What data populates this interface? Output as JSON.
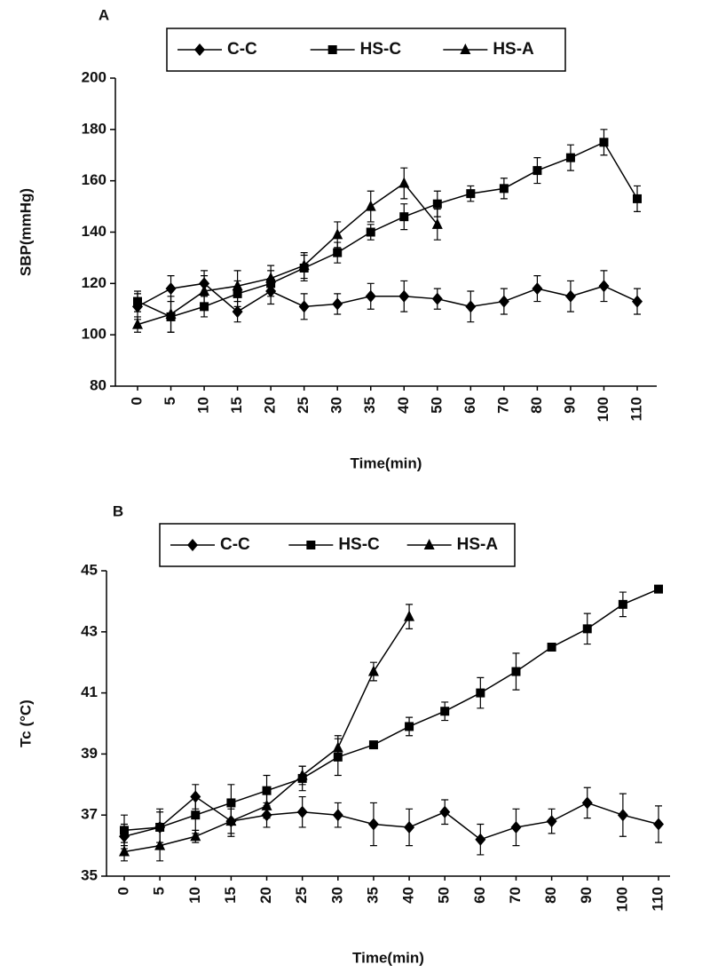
{
  "chart_data": [
    {
      "type": "line",
      "title": "A",
      "xlabel": "Time(min)",
      "ylabel": "SBP(mmHg)",
      "categories": [
        "0",
        "5",
        "10",
        "15",
        "20",
        "25",
        "30",
        "35",
        "40",
        "50",
        "60",
        "70",
        "80",
        "90",
        "100",
        "110"
      ],
      "ylim": [
        80,
        200
      ],
      "yticks": [
        80,
        100,
        120,
        140,
        160,
        180,
        200
      ],
      "series": [
        {
          "name": "C-C",
          "color": "#000000",
          "marker": "diamond",
          "values": [
            111,
            118,
            120,
            109,
            117,
            111,
            112,
            115,
            115,
            114,
            111,
            113,
            118,
            115,
            119,
            113
          ],
          "errors": [
            5,
            5,
            5,
            4,
            5,
            5,
            4,
            5,
            6,
            4,
            6,
            5,
            5,
            6,
            6,
            5
          ]
        },
        {
          "name": "HS-C",
          "color": "#000000",
          "marker": "square",
          "values": [
            113,
            107,
            111,
            116,
            120,
            126,
            132,
            140,
            146,
            151,
            155,
            157,
            164,
            169,
            175,
            153
          ],
          "errors": [
            4,
            6,
            4,
            5,
            5,
            5,
            4,
            3,
            5,
            5,
            3,
            4,
            5,
            5,
            5,
            5
          ]
        },
        {
          "name": "HS-A",
          "color": "#000000",
          "marker": "triangle",
          "values": [
            104,
            108,
            117,
            119,
            122,
            127,
            139,
            150,
            159,
            143,
            null,
            null,
            null,
            null,
            null,
            null
          ],
          "errors": [
            3,
            7,
            6,
            6,
            5,
            5,
            5,
            6,
            6,
            6,
            null,
            null,
            null,
            null,
            null,
            null
          ]
        }
      ]
    },
    {
      "type": "line",
      "title": "B",
      "xlabel": "Time(min)",
      "ylabel": "Tc (°C)",
      "categories": [
        "0",
        "5",
        "10",
        "15",
        "20",
        "25",
        "30",
        "35",
        "40",
        "50",
        "60",
        "70",
        "80",
        "90",
        "100",
        "110"
      ],
      "ylim": [
        35,
        45
      ],
      "yticks": [
        35,
        37,
        39,
        41,
        43,
        45
      ],
      "series": [
        {
          "name": "C-C",
          "color": "#000000",
          "marker": "diamond",
          "values": [
            36.3,
            36.6,
            37.6,
            36.8,
            37.0,
            37.1,
            37.0,
            36.7,
            36.6,
            37.1,
            36.2,
            36.6,
            36.8,
            37.4,
            37.0,
            36.7
          ],
          "errors": [
            0.4,
            0.5,
            0.4,
            0.5,
            0.4,
            0.5,
            0.4,
            0.7,
            0.6,
            0.4,
            0.5,
            0.6,
            0.4,
            0.5,
            0.7,
            0.6
          ]
        },
        {
          "name": "HS-C",
          "color": "#000000",
          "marker": "square",
          "values": [
            36.5,
            36.6,
            37.0,
            37.4,
            37.8,
            38.2,
            38.9,
            39.3,
            39.9,
            40.4,
            41.0,
            41.7,
            42.5,
            43.1,
            43.9,
            44.4
          ],
          "errors": [
            0.5,
            0.6,
            0.6,
            0.6,
            0.5,
            0.4,
            0.6,
            0.1,
            0.3,
            0.3,
            0.5,
            0.6,
            0.1,
            0.5,
            0.4,
            0.1
          ]
        },
        {
          "name": "HS-A",
          "color": "#000000",
          "marker": "triangle",
          "values": [
            35.8,
            36.0,
            36.3,
            36.8,
            37.3,
            38.3,
            39.2,
            41.7,
            43.5,
            null,
            null,
            null,
            null,
            null,
            null,
            null
          ],
          "errors": [
            0.3,
            0.5,
            0.2,
            0.4,
            0.4,
            0.3,
            0.4,
            0.3,
            0.4,
            null,
            null,
            null,
            null,
            null,
            null,
            null
          ]
        }
      ]
    }
  ]
}
